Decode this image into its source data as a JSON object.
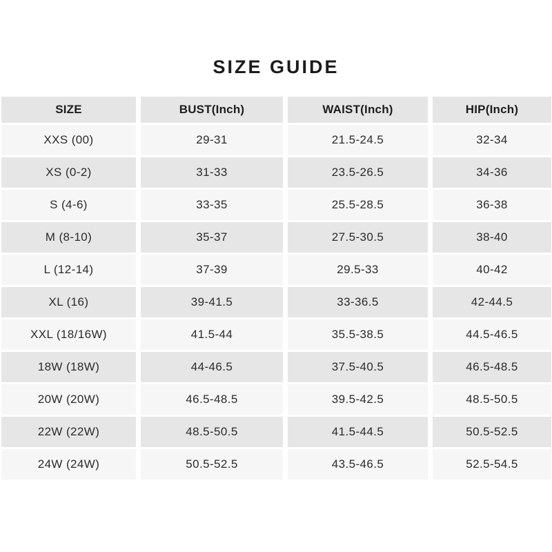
{
  "title": "SIZE GUIDE",
  "table": {
    "columns": [
      "SIZE",
      "BUST(Inch)",
      "WAIST(Inch)",
      "HIP(Inch)"
    ],
    "rows": [
      {
        "size": "XXS (00)",
        "bust": "29-31",
        "waist": "21.5-24.5",
        "hip": "32-34"
      },
      {
        "size": "XS (0-2)",
        "bust": "31-33",
        "waist": "23.5-26.5",
        "hip": "34-36"
      },
      {
        "size": "S (4-6)",
        "bust": "33-35",
        "waist": "25.5-28.5",
        "hip": "36-38"
      },
      {
        "size": "M (8-10)",
        "bust": "35-37",
        "waist": "27.5-30.5",
        "hip": "38-40"
      },
      {
        "size": "L (12-14)",
        "bust": "37-39",
        "waist": "29.5-33",
        "hip": "40-42"
      },
      {
        "size": "XL (16)",
        "bust": "39-41.5",
        "waist": "33-36.5",
        "hip": "42-44.5"
      },
      {
        "size": "XXL (18/16W)",
        "bust": "41.5-44",
        "waist": "35.5-38.5",
        "hip": "44.5-46.5"
      },
      {
        "size": "18W (18W)",
        "bust": "44-46.5",
        "waist": "37.5-40.5",
        "hip": "46.5-48.5"
      },
      {
        "size": "20W (20W)",
        "bust": "46.5-48.5",
        "waist": "39.5-42.5",
        "hip": "48.5-50.5"
      },
      {
        "size": "22W (22W)",
        "bust": "48.5-50.5",
        "waist": "41.5-44.5",
        "hip": "50.5-52.5"
      },
      {
        "size": "24W (24W)",
        "bust": "50.5-52.5",
        "waist": "43.5-46.5",
        "hip": "52.5-54.5"
      }
    ],
    "colors": {
      "page_bg": "#ffffff",
      "header_bg": "#e5e5e5",
      "row_gray_bg": "#e6e6e6",
      "row_light_bg": "#f6f6f6",
      "gap": "#ffffff",
      "text": "#2b2b2b",
      "header_text": "#1d1d1d",
      "title_text": "#1b1b1b"
    }
  }
}
